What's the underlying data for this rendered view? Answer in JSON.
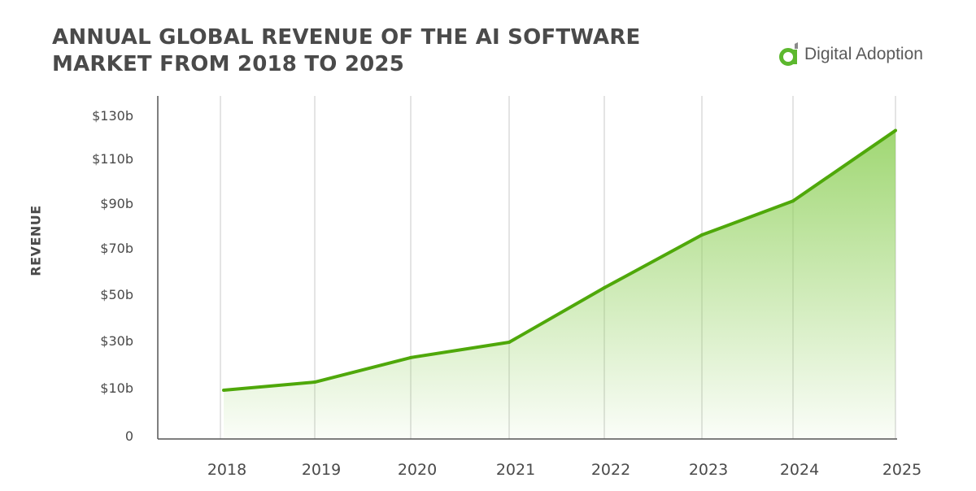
{
  "chart_data": {
    "type": "area",
    "title": "ANNUAL GLOBAL REVENUE OF THE AI SOFTWARE MARKET FROM 2018 TO 2025",
    "xlabel": "",
    "ylabel": "REVENUE",
    "categories": [
      "2018",
      "2019",
      "2020",
      "2021",
      "2022",
      "2023",
      "2024",
      "2025"
    ],
    "values": [
      9.5,
      12.4,
      22.8,
      29.3,
      52.8,
      75.8,
      91,
      123
    ],
    "y_unit": "billion USD",
    "y_ticks": [
      0,
      10,
      30,
      50,
      70,
      90,
      110,
      130
    ],
    "y_tick_labels": [
      "0",
      "$10b",
      "$30b",
      "$50b",
      "$70b",
      "$90b",
      "$110b",
      "$130b"
    ],
    "ylim": [
      0,
      130
    ],
    "grid": "vertical",
    "line_color": "#4fa80a",
    "fill_color": "#8fd05a"
  },
  "brand": {
    "name": "Digital Adoption",
    "color": "#5cb82e"
  }
}
